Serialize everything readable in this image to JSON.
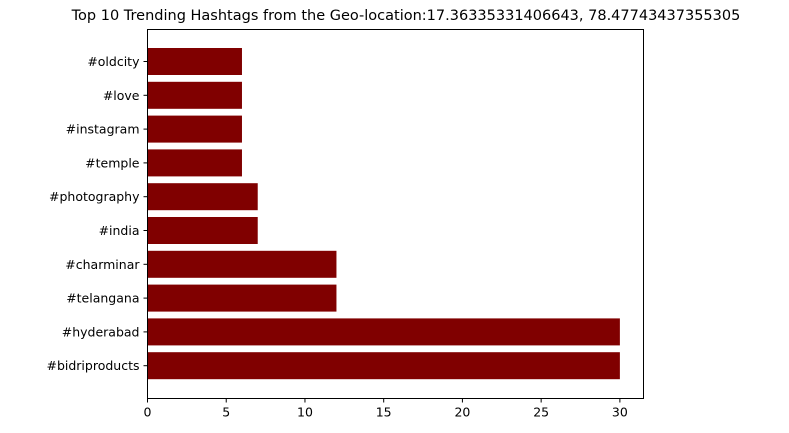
{
  "chart_data": {
    "type": "bar",
    "orientation": "horizontal",
    "title": "Top 10 Trending Hashtags from the Geo-location:17.36335331406643, 78.47743437355305",
    "xlabel": "",
    "ylabel": "",
    "categories": [
      "#oldcity",
      "#love",
      "#instagram",
      "#temple",
      "#photography",
      "#india",
      "#charminar",
      "#telangana",
      "#hyderabad",
      "#bidriproducts"
    ],
    "values": [
      6,
      6,
      6,
      6,
      7,
      7,
      12,
      12,
      30,
      30
    ],
    "xlim": [
      0,
      31.5
    ],
    "xticks": [
      0,
      5,
      10,
      15,
      20,
      25,
      30
    ],
    "grid": false,
    "legend": "none",
    "bar_color": "#800000"
  }
}
